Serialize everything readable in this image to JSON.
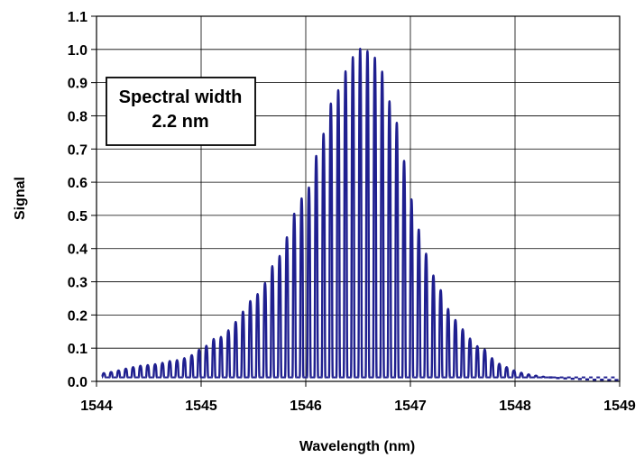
{
  "chart_data": {
    "type": "line",
    "title": "",
    "xlabel": "Wavelength (nm)",
    "ylabel": "Signal",
    "xlim": [
      1544,
      1549
    ],
    "ylim": [
      0,
      1.1
    ],
    "x_ticks": [
      "1544",
      "1545",
      "1546",
      "1547",
      "1548",
      "1549"
    ],
    "y_ticks": [
      "0.0",
      "0.1",
      "0.2",
      "0.3",
      "0.4",
      "0.5",
      "0.6",
      "0.7",
      "0.8",
      "0.9",
      "1.0",
      "1.1"
    ],
    "grid": true,
    "annotation": {
      "line1": "Spectral width",
      "line2": "2.2 nm",
      "position": "top-left"
    },
    "series": [
      {
        "color": "#1f1f8f",
        "peaks": [
          [
            1544.07,
            0.025
          ],
          [
            1544.14,
            0.028
          ],
          [
            1544.21,
            0.033
          ],
          [
            1544.28,
            0.038
          ],
          [
            1544.35,
            0.043
          ],
          [
            1544.42,
            0.047
          ],
          [
            1544.49,
            0.049
          ],
          [
            1544.56,
            0.052
          ],
          [
            1544.63,
            0.056
          ],
          [
            1544.7,
            0.061
          ],
          [
            1544.77,
            0.064
          ],
          [
            1544.84,
            0.07
          ],
          [
            1544.91,
            0.079
          ],
          [
            1544.98,
            0.095
          ],
          [
            1545.05,
            0.107
          ],
          [
            1545.12,
            0.128
          ],
          [
            1545.19,
            0.134
          ],
          [
            1545.26,
            0.154
          ],
          [
            1545.33,
            0.179
          ],
          [
            1545.4,
            0.21
          ],
          [
            1545.47,
            0.242
          ],
          [
            1545.54,
            0.263
          ],
          [
            1545.61,
            0.296
          ],
          [
            1545.68,
            0.347
          ],
          [
            1545.75,
            0.378
          ],
          [
            1545.82,
            0.434
          ],
          [
            1545.89,
            0.505
          ],
          [
            1545.96,
            0.551
          ],
          [
            1546.03,
            0.584
          ],
          [
            1546.1,
            0.679
          ],
          [
            1546.17,
            0.746
          ],
          [
            1546.24,
            0.837
          ],
          [
            1546.31,
            0.877
          ],
          [
            1546.38,
            0.934
          ],
          [
            1546.45,
            0.977
          ],
          [
            1546.52,
            1.002
          ],
          [
            1546.59,
            0.995
          ],
          [
            1546.66,
            0.975
          ],
          [
            1546.73,
            0.933
          ],
          [
            1546.8,
            0.844
          ],
          [
            1546.87,
            0.779
          ],
          [
            1546.94,
            0.664
          ],
          [
            1547.01,
            0.548
          ],
          [
            1547.08,
            0.457
          ],
          [
            1547.15,
            0.385
          ],
          [
            1547.22,
            0.319
          ],
          [
            1547.29,
            0.275
          ],
          [
            1547.36,
            0.218
          ],
          [
            1547.43,
            0.185
          ],
          [
            1547.5,
            0.157
          ],
          [
            1547.57,
            0.129
          ],
          [
            1547.64,
            0.106
          ],
          [
            1547.71,
            0.096
          ],
          [
            1547.78,
            0.07
          ],
          [
            1547.85,
            0.053
          ],
          [
            1547.92,
            0.043
          ],
          [
            1547.99,
            0.033
          ],
          [
            1548.06,
            0.026
          ],
          [
            1548.13,
            0.021
          ],
          [
            1548.2,
            0.017
          ],
          [
            1548.27,
            0.014
          ],
          [
            1548.34,
            0.012
          ],
          [
            1548.41,
            0.01
          ],
          [
            1548.48,
            0.009
          ],
          [
            1548.55,
            0.008
          ],
          [
            1548.62,
            0.007
          ],
          [
            1548.69,
            0.006
          ],
          [
            1548.76,
            0.005
          ],
          [
            1548.83,
            0.005
          ],
          [
            1548.9,
            0.004
          ],
          [
            1548.97,
            0.004
          ]
        ]
      }
    ]
  }
}
